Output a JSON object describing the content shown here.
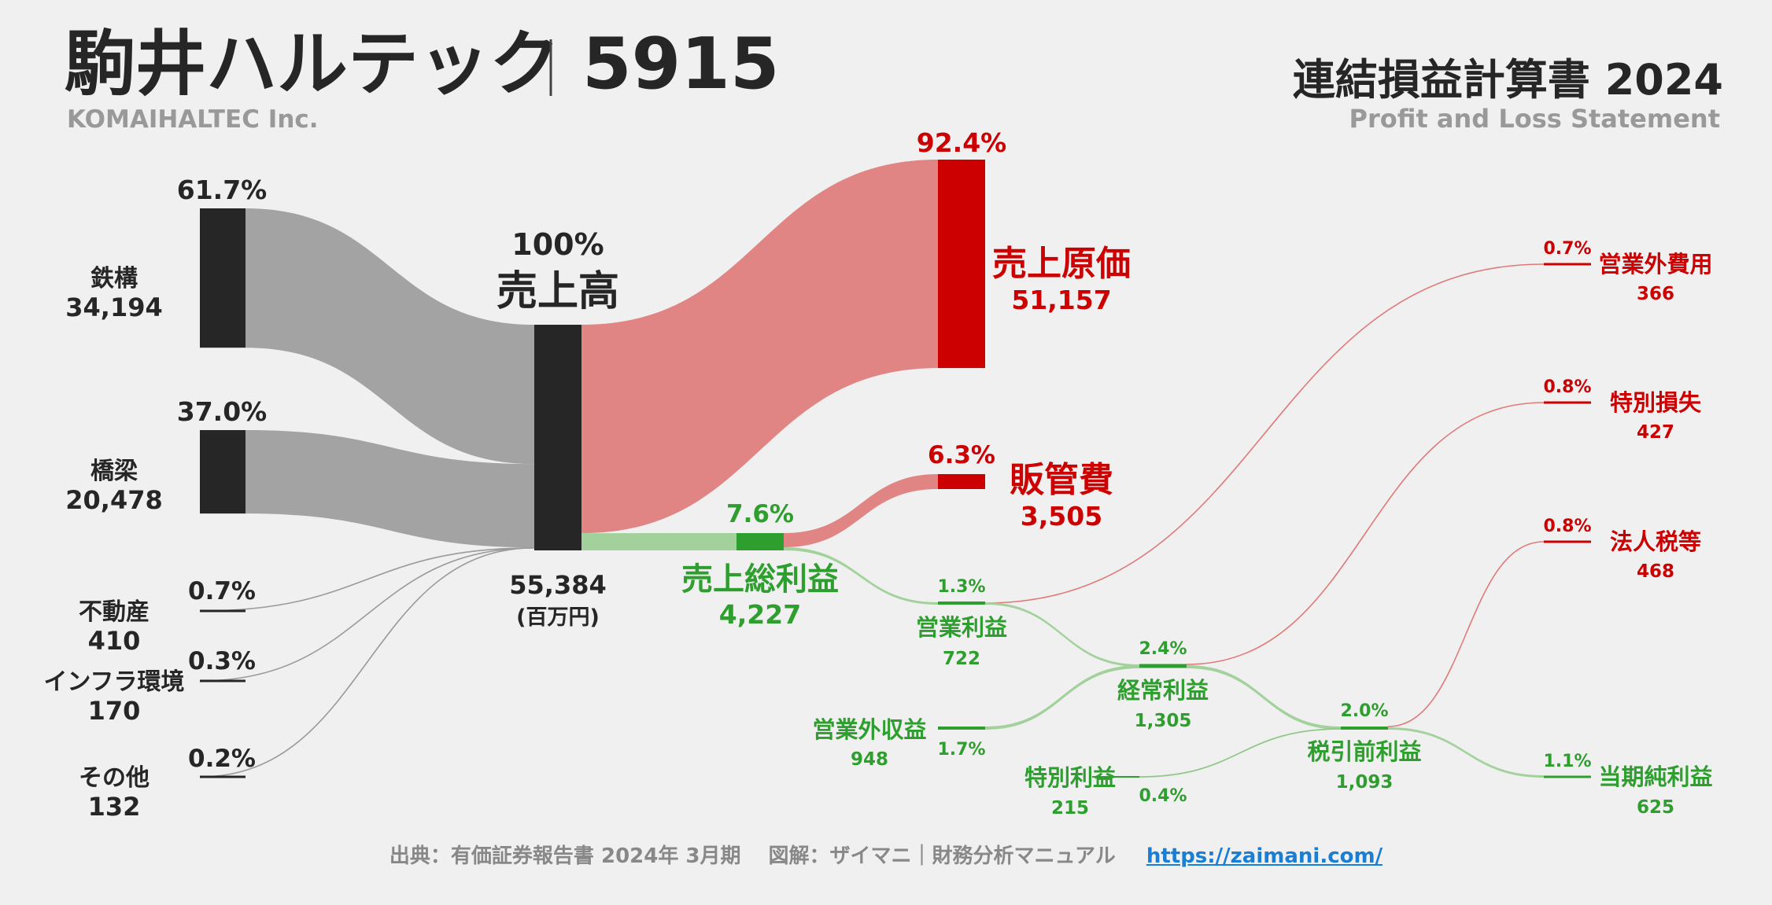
{
  "header": {
    "title": "駒井ハルテック",
    "code": "5915",
    "company_en": "KOMAIHALTEC Inc.",
    "statement_title": "連結損益計算書 2024",
    "statement_en": "Profit and Loss Statement"
  },
  "colors": {
    "bg": "#f0f0f0",
    "dark": "#262626",
    "grey_flow": "#a3a3a3",
    "red": "#cc0000",
    "red_flow": "#e08584",
    "green": "#2e9e2e",
    "green_flow": "#a2d19b"
  },
  "chart_data": {
    "type": "sankey",
    "unit": "(百万円)",
    "segments": [
      {
        "name": "鉄構",
        "value": "34,194",
        "pct": "61.7%"
      },
      {
        "name": "橋梁",
        "value": "20,478",
        "pct": "37.0%"
      },
      {
        "name": "不動産",
        "value": "410",
        "pct": "0.7%"
      },
      {
        "name": "インフラ環境",
        "value": "170",
        "pct": "0.3%"
      },
      {
        "name": "その他",
        "value": "132",
        "pct": "0.2%"
      }
    ],
    "revenue": {
      "name": "売上高",
      "value": "55,384",
      "pct": "100%"
    },
    "cost_of_sales": {
      "name": "売上原価",
      "value": "51,157",
      "pct": "92.4%"
    },
    "sga": {
      "name": "販管費",
      "value": "3,505",
      "pct": "6.3%"
    },
    "gross_profit": {
      "name": "売上総利益",
      "value": "4,227",
      "pct": "7.6%"
    },
    "operating_income": {
      "name": "営業利益",
      "value": "722",
      "pct": "1.3%"
    },
    "non_operating_income": {
      "name": "営業外収益",
      "value": "948",
      "pct": "1.7%"
    },
    "non_operating_expense": {
      "name": "営業外費用",
      "value": "366",
      "pct": "0.7%"
    },
    "ordinary_income": {
      "name": "経常利益",
      "value": "1,305",
      "pct": "2.4%"
    },
    "extraordinary_income": {
      "name": "特別利益",
      "value": "215",
      "pct": "0.4%"
    },
    "extraordinary_loss": {
      "name": "特別損失",
      "value": "427",
      "pct": "0.8%"
    },
    "pretax_income": {
      "name": "税引前利益",
      "value": "1,093",
      "pct": "2.0%"
    },
    "income_taxes": {
      "name": "法人税等",
      "value": "468",
      "pct": "0.8%"
    },
    "net_income": {
      "name": "当期純利益",
      "value": "625",
      "pct": "1.1%"
    }
  },
  "footer": {
    "source": "出典：有価証券報告書 2024年 3月期　 図解：ザイマニ｜財務分析マニュアル",
    "link": "https://zaimani.com/"
  }
}
